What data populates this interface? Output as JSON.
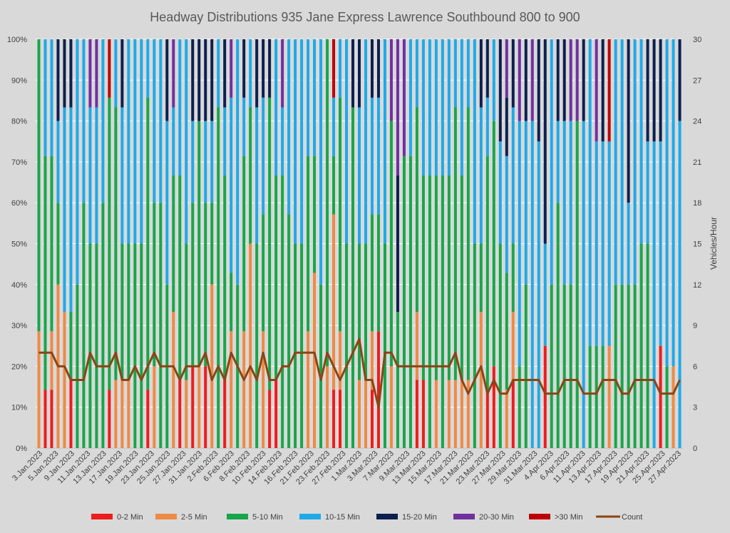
{
  "chart_data": {
    "type": "bar",
    "stacked": true,
    "percent_stacked": true,
    "title": "Headway Distributions 935 Jane Express  Lawrence Southbound 800 to 900",
    "y_left": {
      "ticks": [
        "0%",
        "10%",
        "20%",
        "30%",
        "40%",
        "50%",
        "60%",
        "70%",
        "80%",
        "90%",
        "100%"
      ],
      "range": [
        0,
        100
      ]
    },
    "y_right": {
      "label": "Vehicles/Hour",
      "ticks": [
        "0",
        "3",
        "6",
        "9",
        "12",
        "15",
        "18",
        "21",
        "24",
        "27",
        "30"
      ],
      "range": [
        0,
        30
      ]
    },
    "x_tick_labels": [
      "3.Jan.2023",
      "5.Jan.2023",
      "9.Jan.2023",
      "11.Jan.2023",
      "13.Jan.2023",
      "17.Jan.2023",
      "19.Jan.2023",
      "23.Jan.2023",
      "25.Jan.2023",
      "27.Jan.2023",
      "31.Jan.2023",
      "2.Feb.2023",
      "6.Feb.2023",
      "8.Feb.2023",
      "10.Feb.2023",
      "14.Feb.2023",
      "16.Feb.2023",
      "21.Feb.2023",
      "23.Feb.2023",
      "27.Feb.2023",
      "1.Mar.2023",
      "3.Mar.2023",
      "7.Mar.2023",
      "9.Mar.2023",
      "13.Mar.2023",
      "15.Mar.2023",
      "17.Mar.2023",
      "21.Mar.2023",
      "23.Mar.2023",
      "27.Mar.2023",
      "29.Mar.2023",
      "31.Mar.2023",
      "4.Apr.2023",
      "6.Apr.2023",
      "11.Apr.2023",
      "13.Apr.2023",
      "17.Apr.2023",
      "19.Apr.2023",
      "21.Apr.2023",
      "25.Apr.2023",
      "27.Apr.2023"
    ],
    "grid": true,
    "legend_position": "bottom",
    "categories": [
      "0-2 Min",
      "2-5 Min",
      "5-10 Min",
      "10-15 Min",
      "15-20 Min",
      "20-30 Min",
      ">30 Min"
    ],
    "colors": [
      "#ee1c1c",
      "#ee8a45",
      "#17a64a",
      "#1eaae8",
      "#0c1f4f",
      "#7030a0",
      "#c00000"
    ],
    "count_series": {
      "name": "Count",
      "color": "#8b4513"
    },
    "bars": [
      [
        0,
        2,
        5,
        0,
        0,
        0,
        0
      ],
      [
        1,
        0,
        4,
        2,
        0,
        0,
        0
      ],
      [
        1,
        1,
        3,
        2,
        0,
        0,
        0
      ],
      [
        0,
        2,
        1,
        1,
        1,
        0,
        0
      ],
      [
        0,
        2,
        0,
        3,
        1,
        0,
        0
      ],
      [
        1,
        0,
        1,
        3,
        1,
        0,
        0
      ],
      [
        0,
        0,
        2,
        3,
        0,
        0,
        0
      ],
      [
        0,
        0,
        3,
        2,
        0,
        0,
        0
      ],
      [
        0,
        0,
        3,
        2,
        0,
        1,
        0
      ],
      [
        0,
        0,
        3,
        2,
        0,
        1,
        0
      ],
      [
        0,
        0,
        3,
        2,
        0,
        0,
        0
      ],
      [
        1,
        0,
        5,
        0,
        0,
        0,
        1
      ],
      [
        0,
        1,
        4,
        1,
        0,
        0,
        0
      ],
      [
        0,
        1,
        2,
        2,
        1,
        0,
        0
      ],
      [
        0,
        1,
        2,
        3,
        0,
        0,
        0
      ],
      [
        0,
        0,
        3,
        3,
        0,
        0,
        0
      ],
      [
        0,
        0,
        3,
        3,
        0,
        0,
        0
      ],
      [
        1,
        0,
        5,
        1,
        0,
        0,
        0
      ],
      [
        0,
        1,
        2,
        2,
        0,
        0,
        0
      ],
      [
        0,
        0,
        3,
        2,
        0,
        0,
        0
      ],
      [
        0,
        0,
        2,
        2,
        1,
        0,
        0
      ],
      [
        0,
        2,
        2,
        1,
        0,
        1,
        0
      ],
      [
        1,
        0,
        3,
        2,
        0,
        0,
        0
      ],
      [
        0,
        1,
        2,
        3,
        0,
        0,
        0
      ],
      [
        1,
        0,
        2,
        1,
        1,
        0,
        0
      ],
      [
        0,
        1,
        3,
        0,
        1,
        0,
        0
      ],
      [
        1,
        0,
        2,
        1,
        1,
        0,
        0
      ],
      [
        0,
        2,
        1,
        1,
        1,
        0,
        0
      ],
      [
        0,
        0,
        5,
        1,
        0,
        0,
        0
      ],
      [
        1,
        0,
        3,
        1,
        1,
        0,
        0
      ],
      [
        0,
        2,
        1,
        3,
        0,
        1,
        0
      ],
      [
        0,
        0,
        2,
        3,
        0,
        0,
        0
      ],
      [
        0,
        2,
        3,
        1,
        1,
        0,
        0
      ],
      [
        0,
        3,
        2,
        1,
        0,
        0,
        0
      ],
      [
        0,
        0,
        3,
        2,
        1,
        0,
        0
      ],
      [
        0,
        2,
        2,
        2,
        1,
        0,
        0
      ],
      [
        1,
        0,
        5,
        0,
        1,
        0,
        0
      ],
      [
        1,
        0,
        3,
        2,
        0,
        0,
        0
      ],
      [
        0,
        0,
        4,
        1,
        0,
        1,
        0
      ],
      [
        0,
        0,
        4,
        3,
        0,
        0,
        0
      ],
      [
        0,
        0,
        3,
        3,
        0,
        0,
        0
      ],
      [
        0,
        0,
        3,
        3,
        0,
        0,
        0
      ],
      [
        0,
        2,
        3,
        2,
        0,
        0,
        0
      ],
      [
        0,
        3,
        2,
        2,
        0,
        0,
        0
      ],
      [
        0,
        0,
        2,
        3,
        0,
        0,
        0
      ],
      [
        0,
        1,
        4,
        0,
        0,
        0,
        0
      ],
      [
        1,
        3,
        1,
        1,
        0,
        0,
        1
      ],
      [
        1,
        1,
        4,
        1,
        0,
        0,
        0
      ],
      [
        0,
        0,
        3,
        3,
        0,
        0,
        0
      ],
      [
        0,
        0,
        5,
        0,
        1,
        0,
        0
      ],
      [
        0,
        1,
        2,
        2,
        1,
        0,
        0
      ],
      [
        0,
        1,
        2,
        3,
        0,
        0,
        0
      ],
      [
        1,
        1,
        2,
        2,
        1,
        0,
        0
      ],
      [
        2,
        0,
        2,
        2,
        1,
        0,
        0
      ],
      [
        0,
        0,
        3,
        3,
        0,
        0,
        0
      ],
      [
        0,
        1,
        3,
        0,
        0,
        1,
        0
      ],
      [
        0,
        0,
        1,
        0,
        1,
        1,
        0
      ],
      [
        0,
        0,
        5,
        0,
        0,
        2,
        0
      ],
      [
        0,
        0,
        5,
        2,
        0,
        0,
        0
      ],
      [
        1,
        1,
        3,
        1,
        0,
        0,
        0
      ],
      [
        1,
        0,
        3,
        2,
        0,
        0,
        0
      ],
      [
        0,
        0,
        4,
        2,
        0,
        0,
        0
      ],
      [
        0,
        1,
        3,
        2,
        0,
        0,
        0
      ],
      [
        0,
        0,
        4,
        2,
        0,
        0,
        0
      ],
      [
        0,
        1,
        3,
        2,
        0,
        0,
        0
      ],
      [
        0,
        1,
        4,
        1,
        0,
        0,
        0
      ],
      [
        0,
        1,
        3,
        2,
        0,
        0,
        0
      ],
      [
        0,
        1,
        4,
        1,
        0,
        0,
        0
      ],
      [
        0,
        0,
        3,
        3,
        0,
        0,
        0
      ],
      [
        0,
        2,
        1,
        2,
        1,
        0,
        0
      ],
      [
        1,
        0,
        4,
        1,
        1,
        0,
        0
      ],
      [
        1,
        0,
        3,
        1,
        0,
        0,
        0
      ],
      [
        0,
        0,
        2,
        1,
        1,
        0,
        0
      ],
      [
        0,
        1,
        2,
        2,
        1,
        1,
        0
      ],
      [
        1,
        1,
        1,
        2,
        1,
        0,
        0
      ],
      [
        0,
        0,
        1,
        3,
        0,
        1,
        0
      ],
      [
        0,
        0,
        2,
        2,
        1,
        0,
        0
      ],
      [
        0,
        0,
        0,
        4,
        0,
        1,
        0
      ],
      [
        0,
        0,
        0,
        3,
        1,
        0,
        0
      ],
      [
        1,
        0,
        0,
        1,
        2,
        0,
        0
      ],
      [
        0,
        0,
        2,
        3,
        0,
        0,
        0
      ],
      [
        0,
        0,
        3,
        1,
        1,
        0,
        0
      ],
      [
        0,
        0,
        2,
        2,
        1,
        0,
        0
      ],
      [
        0,
        0,
        2,
        2,
        0,
        1,
        0
      ],
      [
        0,
        0,
        4,
        0,
        0,
        1,
        0
      ],
      [
        0,
        0,
        0,
        4,
        1,
        0,
        0
      ],
      [
        0,
        0,
        1,
        3,
        0,
        0,
        0
      ],
      [
        0,
        0,
        1,
        2,
        0,
        1,
        0
      ],
      [
        0,
        0,
        1,
        2,
        1,
        0,
        0
      ],
      [
        0,
        1,
        0,
        2,
        0,
        0,
        1
      ],
      [
        0,
        0,
        2,
        3,
        0,
        0,
        0
      ],
      [
        0,
        0,
        2,
        3,
        0,
        0,
        0
      ],
      [
        0,
        0,
        2,
        1,
        2,
        0,
        0
      ],
      [
        0,
        0,
        2,
        3,
        0,
        0,
        0
      ],
      [
        0,
        0,
        2,
        2,
        0,
        0,
        0
      ],
      [
        0,
        0,
        2,
        1,
        1,
        0,
        0
      ],
      [
        0,
        0,
        0,
        3,
        1,
        0,
        0
      ],
      [
        1,
        0,
        0,
        2,
        1,
        0,
        0
      ],
      [
        0,
        0,
        1,
        4,
        0,
        0,
        0
      ],
      [
        0,
        1,
        0,
        4,
        0,
        0,
        0
      ],
      [
        0,
        0,
        0,
        4,
        1,
        0,
        0
      ]
    ],
    "counts": [
      7,
      7,
      7,
      6,
      6,
      5,
      5,
      5,
      7,
      6,
      6,
      6,
      7,
      5,
      5,
      6,
      5,
      6,
      7,
      6,
      6,
      6,
      5,
      6,
      6,
      6,
      7,
      5,
      6,
      5,
      7,
      6,
      5,
      6,
      5,
      7,
      5,
      5,
      6,
      6,
      7,
      7,
      7,
      7,
      5,
      7,
      6,
      5,
      6,
      7,
      8,
      5,
      5,
      3,
      7,
      7,
      6,
      6,
      6,
      6,
      6,
      6,
      6,
      6,
      6,
      7,
      5,
      4,
      5,
      6,
      4,
      5,
      4,
      4,
      5,
      5,
      5,
      5,
      5,
      4,
      4,
      4,
      5,
      5,
      5,
      4,
      4,
      4,
      5,
      5,
      5,
      4,
      4,
      5,
      5,
      5,
      5,
      4,
      4,
      4,
      5
    ],
    "xlim_bars": 101
  }
}
